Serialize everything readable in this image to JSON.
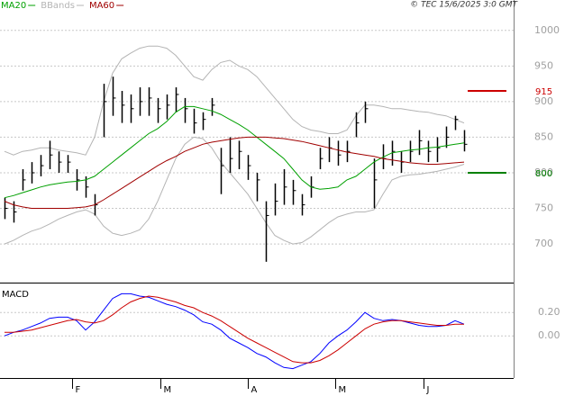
{
  "chart_data": [
    {
      "type": "hlc",
      "source": "© TEC 15/6/2025 3:0 GMT",
      "xlim": [
        -0.5,
        56.5
      ],
      "ylim": [
        647,
        1025
      ],
      "yticks": [
        700,
        750,
        800,
        850,
        900,
        950,
        1000
      ],
      "grid": true,
      "bar_color": "#000000",
      "high": [
        765,
        760,
        805,
        815,
        825,
        845,
        830,
        825,
        805,
        795,
        770,
        925,
        935,
        915,
        910,
        920,
        920,
        905,
        910,
        920,
        905,
        890,
        885,
        905,
        835,
        850,
        845,
        825,
        800,
        760,
        785,
        805,
        790,
        770,
        795,
        835,
        850,
        845,
        845,
        885,
        900,
        820,
        840,
        845,
        830,
        845,
        860,
        845,
        850,
        865,
        880,
        860
      ],
      "low": [
        735,
        730,
        775,
        785,
        795,
        805,
        800,
        800,
        775,
        765,
        740,
        850,
        880,
        870,
        870,
        880,
        880,
        870,
        875,
        885,
        870,
        855,
        860,
        880,
        770,
        800,
        805,
        790,
        760,
        675,
        740,
        755,
        755,
        740,
        765,
        805,
        815,
        810,
        815,
        850,
        870,
        750,
        805,
        810,
        800,
        815,
        825,
        815,
        815,
        835,
        860,
        830
      ],
      "close": [
        750,
        745,
        790,
        800,
        810,
        825,
        815,
        815,
        790,
        780,
        755,
        900,
        905,
        895,
        890,
        900,
        905,
        890,
        895,
        910,
        890,
        870,
        875,
        895,
        810,
        820,
        830,
        810,
        790,
        740,
        760,
        780,
        775,
        755,
        780,
        820,
        835,
        825,
        830,
        870,
        890,
        790,
        820,
        830,
        815,
        830,
        845,
        830,
        835,
        850,
        875,
        840
      ],
      "series": [
        {
          "name": "MA20",
          "color": "#00a000",
          "values": [
            765,
            768,
            772,
            776,
            780,
            783,
            785,
            787,
            788,
            790,
            795,
            805,
            815,
            825,
            835,
            845,
            855,
            862,
            872,
            885,
            893,
            893,
            890,
            887,
            882,
            875,
            868,
            860,
            850,
            840,
            830,
            820,
            805,
            790,
            780,
            777,
            778,
            780,
            790,
            795,
            805,
            815,
            822,
            828,
            830,
            832,
            833,
            835,
            836,
            838,
            840,
            842
          ]
        },
        {
          "name": "BBands",
          "color": "#b4b4b4",
          "upper": [
            830,
            825,
            830,
            832,
            835,
            835,
            832,
            830,
            828,
            825,
            850,
            900,
            940,
            960,
            968,
            975,
            978,
            978,
            975,
            965,
            950,
            935,
            930,
            945,
            955,
            958,
            950,
            945,
            935,
            920,
            905,
            890,
            875,
            865,
            860,
            858,
            855,
            855,
            860,
            880,
            895,
            895,
            893,
            890,
            890,
            888,
            886,
            885,
            882,
            880,
            875,
            870
          ],
          "lower": [
            700,
            705,
            712,
            718,
            722,
            728,
            735,
            740,
            745,
            748,
            742,
            725,
            715,
            712,
            715,
            720,
            735,
            760,
            790,
            820,
            840,
            850,
            848,
            835,
            815,
            800,
            785,
            770,
            750,
            730,
            712,
            705,
            700,
            702,
            710,
            720,
            730,
            738,
            742,
            745,
            745,
            748,
            770,
            790,
            795,
            797,
            798,
            800,
            802,
            805,
            808,
            812
          ]
        },
        {
          "name": "MA60",
          "color": "#a00000",
          "values": [
            760,
            755,
            752,
            750,
            750,
            750,
            750,
            750,
            751,
            752,
            755,
            762,
            770,
            778,
            786,
            794,
            802,
            810,
            817,
            823,
            830,
            835,
            840,
            843,
            845,
            847,
            849,
            850,
            850,
            850,
            849,
            848,
            846,
            844,
            841,
            838,
            835,
            832,
            829,
            827,
            825,
            823,
            820,
            818,
            816,
            814,
            813,
            812,
            812,
            813,
            814,
            815
          ]
        }
      ],
      "levels": [
        {
          "value": 915,
          "color": "#cc0000"
        },
        {
          "value": 800,
          "color": "#008000"
        }
      ]
    },
    {
      "type": "line",
      "title": "MACD",
      "xlim": [
        -0.5,
        56.5
      ],
      "ylim": [
        -0.36,
        0.44
      ],
      "grid": true,
      "yticks": [
        {
          "value": 0,
          "label": "0.00"
        },
        {
          "value": 0.2,
          "label": "0.20"
        }
      ],
      "xticks": [
        {
          "value": 7.5,
          "label": "F"
        },
        {
          "value": 17.3,
          "label": "M"
        },
        {
          "value": 27,
          "label": "A"
        },
        {
          "value": 36.7,
          "label": "M"
        },
        {
          "value": 46.5,
          "label": "J"
        }
      ],
      "series": [
        {
          "color": "#0000ff",
          "values": [
            0.0,
            0.03,
            0.05,
            0.08,
            0.11,
            0.15,
            0.16,
            0.16,
            0.13,
            0.05,
            0.12,
            0.22,
            0.32,
            0.36,
            0.36,
            0.34,
            0.33,
            0.3,
            0.27,
            0.25,
            0.22,
            0.18,
            0.12,
            0.1,
            0.05,
            -0.02,
            -0.06,
            -0.1,
            -0.15,
            -0.18,
            -0.23,
            -0.27,
            -0.28,
            -0.25,
            -0.22,
            -0.15,
            -0.06,
            0.0,
            0.05,
            0.12,
            0.2,
            0.15,
            0.13,
            0.14,
            0.13,
            0.11,
            0.09,
            0.08,
            0.08,
            0.09,
            0.13,
            0.1
          ]
        },
        {
          "color": "#cc0000",
          "values": [
            0.03,
            0.03,
            0.04,
            0.05,
            0.07,
            0.09,
            0.11,
            0.13,
            0.14,
            0.12,
            0.11,
            0.13,
            0.18,
            0.24,
            0.29,
            0.32,
            0.34,
            0.33,
            0.31,
            0.29,
            0.26,
            0.24,
            0.2,
            0.17,
            0.13,
            0.08,
            0.03,
            -0.02,
            -0.06,
            -0.1,
            -0.14,
            -0.18,
            -0.22,
            -0.23,
            -0.23,
            -0.21,
            -0.17,
            -0.12,
            -0.06,
            0.0,
            0.06,
            0.1,
            0.12,
            0.13,
            0.13,
            0.12,
            0.11,
            0.1,
            0.09,
            0.09,
            0.1,
            0.1
          ]
        }
      ]
    }
  ]
}
